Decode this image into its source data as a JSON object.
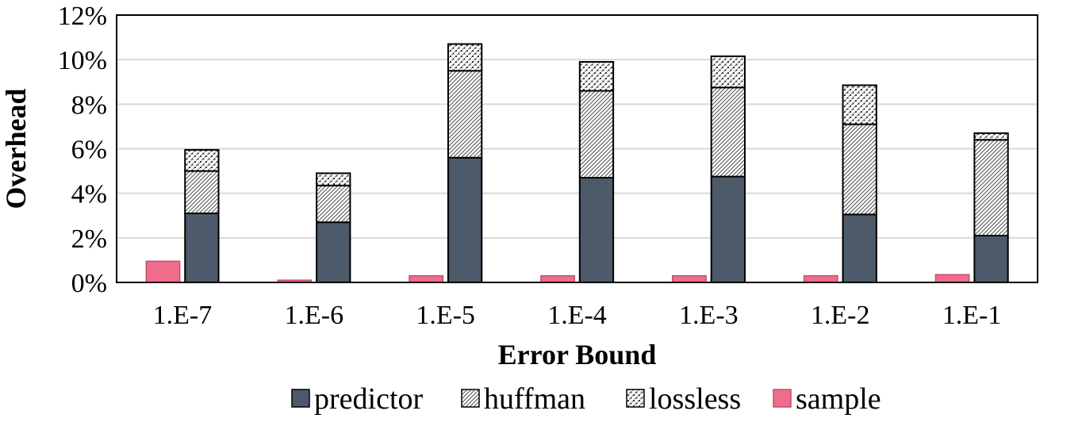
{
  "chart_data": {
    "type": "bar",
    "stacked": true,
    "title": "",
    "xlabel": "Error Bound",
    "ylabel": "Overhead",
    "ylim": [
      0,
      12
    ],
    "y_tick_values": [
      0,
      2,
      4,
      6,
      8,
      10,
      12
    ],
    "y_tick_labels": [
      "0%",
      "2%",
      "4%",
      "6%",
      "8%",
      "10%",
      "12%"
    ],
    "y_unit": "%",
    "grid": "horizontal",
    "legend_position": "bottom",
    "categories": [
      "1.E-7",
      "1.E-6",
      "1.E-5",
      "1.E-4",
      "1.E-3",
      "1.E-2",
      "1.E-1"
    ],
    "series": [
      {
        "name": "predictor",
        "stack": "main",
        "color": "#4d5a69",
        "pattern": "solid",
        "values": [
          3.1,
          2.7,
          5.6,
          4.7,
          4.75,
          3.05,
          2.1
        ]
      },
      {
        "name": "huffman",
        "stack": "main",
        "color": "#ffffff",
        "pattern": "diagonal-hatch",
        "values": [
          1.9,
          1.65,
          3.9,
          3.9,
          4.0,
          4.05,
          4.3
        ]
      },
      {
        "name": "lossless",
        "stack": "main",
        "color": "#ffffff",
        "pattern": "dotted",
        "values": [
          0.95,
          0.55,
          1.2,
          1.3,
          1.4,
          1.75,
          0.3
        ]
      },
      {
        "name": "sample",
        "stack": "sample",
        "color": "#ee6d8d",
        "pattern": "solid",
        "values": [
          0.95,
          0.1,
          0.3,
          0.3,
          0.3,
          0.3,
          0.35
        ]
      }
    ]
  }
}
